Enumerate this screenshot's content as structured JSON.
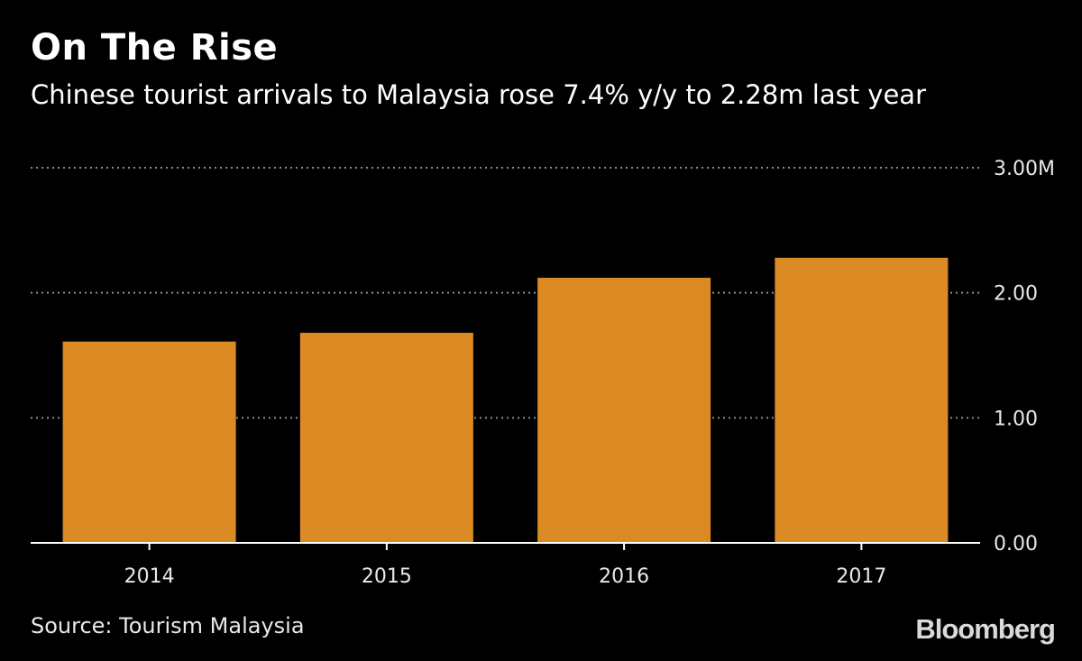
{
  "title": "On The Rise",
  "subtitle": "Chinese tourist arrivals to Malaysia rose 7.4% y/y to 2.28m last year",
  "source": "Source: Tourism Malaysia",
  "brand": "Bloomberg",
  "colors": {
    "background": "#000000",
    "bar": "#dc8a23",
    "grid": "#8c8c8c",
    "text": "#e8e8e8"
  },
  "chart_data": {
    "type": "bar",
    "categories": [
      "2014",
      "2015",
      "2016",
      "2017"
    ],
    "values": [
      1.61,
      1.68,
      2.12,
      2.28
    ],
    "ylim": [
      0,
      3
    ],
    "y_ticks": [
      0,
      1,
      2,
      3
    ],
    "y_tick_labels": [
      "0.00",
      "1.00",
      "2.00",
      "3.00M"
    ],
    "y_axis_side": "right",
    "grid": true,
    "xlabel": "",
    "ylabel": ""
  }
}
